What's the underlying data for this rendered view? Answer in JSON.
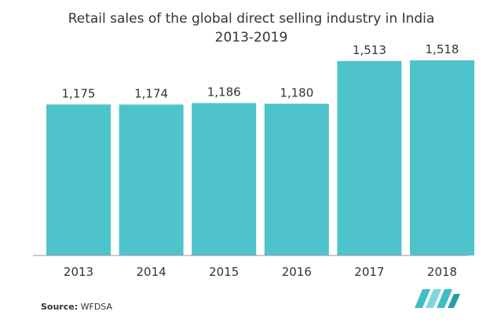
{
  "chart_data": {
    "type": "bar",
    "title": "Retail sales of the global direct selling industry in India 2013-2019",
    "categories": [
      "2013",
      "2014",
      "2015",
      "2016",
      "2017",
      "2018"
    ],
    "values": [
      1175,
      1174,
      1186,
      1180,
      1513,
      1518
    ],
    "value_labels": [
      "1,175",
      "1,174",
      "1,186",
      "1,180",
      "1,513",
      "1,518"
    ],
    "ylim": [
      0,
      1518
    ],
    "grid": false,
    "legend": "none",
    "bar_color": "#4fc3cb"
  },
  "source": {
    "label": "Source:",
    "value": "WFDSA"
  },
  "colors": {
    "axis": "#999999",
    "text": "#333333",
    "logo": "#3fbdc6"
  }
}
